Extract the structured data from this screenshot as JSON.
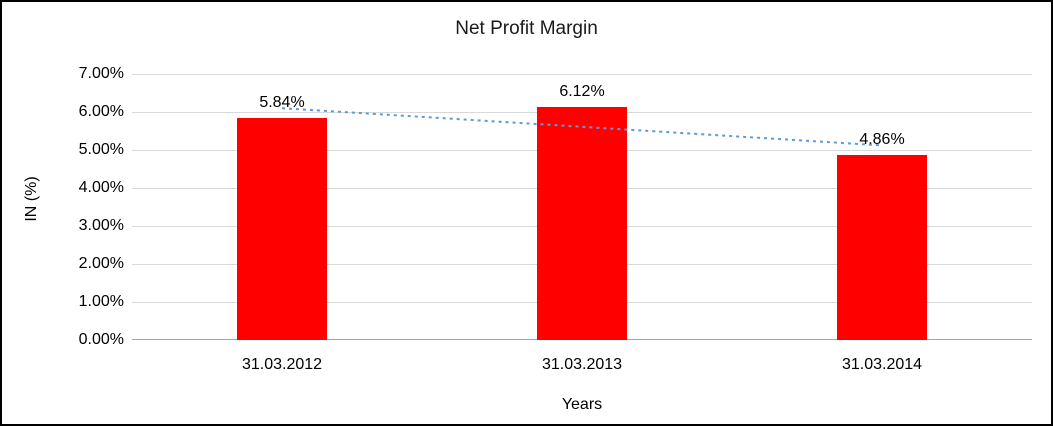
{
  "chart_data": {
    "type": "bar",
    "title": "Net Profit Margin",
    "xlabel": "Years",
    "ylabel": "IN (%)",
    "categories": [
      "31.03.2012",
      "31.03.2013",
      "31.03.2014"
    ],
    "values": [
      5.84,
      6.12,
      4.86
    ],
    "data_labels": [
      "5.84%",
      "6.12%",
      "4.86%"
    ],
    "ylim": [
      0,
      7
    ],
    "ytick_step": 1,
    "ytick_labels": [
      "0.00%",
      "1.00%",
      "2.00%",
      "3.00%",
      "4.00%",
      "5.00%",
      "6.00%",
      "7.00%"
    ],
    "grid": true,
    "legend": false,
    "bar_color": "#ff0000",
    "gridline_color": "#d9d9d9",
    "axis_line_color": "#a6a6a6",
    "trendline": {
      "style": "dotted",
      "color": "#5b9bd5",
      "values": [
        6.1,
        5.61,
        5.12
      ]
    }
  }
}
